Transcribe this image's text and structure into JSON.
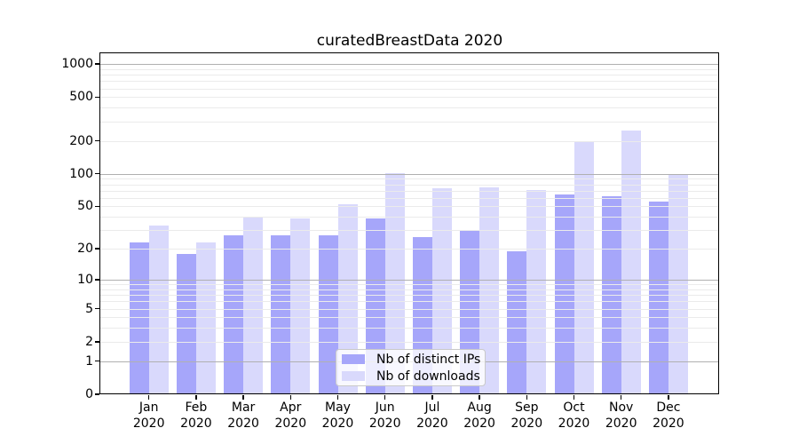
{
  "title": "curatedBreastData 2020",
  "colors": {
    "distinct_ips_bar": "#a6a6fa",
    "downloads_bar": "#d9d9fc",
    "grid_major": "#b0b0b0",
    "grid_minor": "#ebebeb",
    "axis_line": "#000000",
    "legend_border": "#c9c9c9",
    "legend_background": "rgba(255,255,255,0.8)",
    "text": "#000000"
  },
  "legend": {
    "items": [
      {
        "label": "Nb of distinct IPs",
        "color_key": "distinct_ips_bar"
      },
      {
        "label": "Nb of downloads",
        "color_key": "downloads_bar"
      }
    ]
  },
  "chart_data": {
    "type": "bar",
    "title": "curatedBreastData 2020",
    "scale_y": "symlog",
    "months": [
      "Jan",
      "Feb",
      "Mar",
      "Apr",
      "May",
      "Jun",
      "Jul",
      "Aug",
      "Sep",
      "Oct",
      "Nov",
      "Dec"
    ],
    "year": "2020",
    "categories": [
      "Jan 2020",
      "Feb 2020",
      "Mar 2020",
      "Apr 2020",
      "May 2020",
      "Jun 2020",
      "Jul 2020",
      "Aug 2020",
      "Sep 2020",
      "Oct 2020",
      "Nov 2020",
      "Dec 2020"
    ],
    "series": [
      {
        "name": "Nb of distinct IPs",
        "color_key": "distinct_ips_bar",
        "values": [
          23,
          18,
          27,
          27,
          27,
          39,
          26,
          30,
          19,
          65,
          62,
          55
        ]
      },
      {
        "name": "Nb of downloads",
        "color_key": "downloads_bar",
        "values": [
          33,
          23,
          40,
          39,
          52,
          102,
          74,
          75,
          71,
          200,
          250,
          97
        ]
      }
    ],
    "y_ticks": [
      0,
      1,
      2,
      5,
      10,
      20,
      50,
      100,
      200,
      500,
      1000
    ],
    "ylim": [
      0,
      1250
    ],
    "grid": true,
    "legend_position": "lower center"
  }
}
